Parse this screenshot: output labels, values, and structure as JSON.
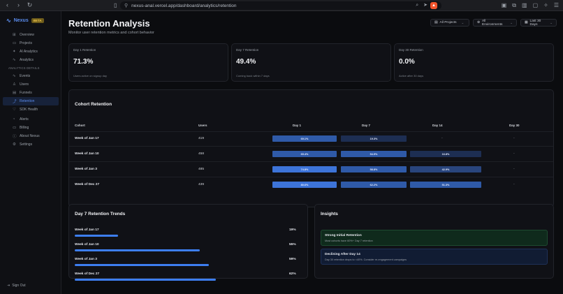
{
  "browser": {
    "url": "nexus-anal.vercel.app/dashboard/analytics/retention"
  },
  "sidebar": {
    "brand": "Nexus",
    "badge": "BETA",
    "items": [
      {
        "label": "Overview",
        "icon": "grid-icon",
        "glyph": "⊞"
      },
      {
        "label": "Projects",
        "icon": "folder-icon",
        "glyph": "▭"
      },
      {
        "label": "AI Analytics",
        "icon": "sparkle-icon",
        "glyph": "✦"
      },
      {
        "label": "Analytics",
        "icon": "pulse-icon",
        "glyph": "∿"
      }
    ],
    "section": "ANALYTICS DETAILS",
    "subitems": [
      {
        "label": "Events",
        "icon": "activity-icon",
        "glyph": "∿"
      },
      {
        "label": "Users",
        "icon": "users-icon",
        "glyph": "♙"
      },
      {
        "label": "Funnels",
        "icon": "funnel-icon",
        "glyph": "▤"
      },
      {
        "label": "Retention",
        "icon": "trend-icon",
        "glyph": "⤴",
        "active": true
      },
      {
        "label": "SDK Health",
        "icon": "heart-icon",
        "glyph": "♡"
      }
    ],
    "bottom": [
      {
        "label": "Alerts",
        "icon": "bell-icon",
        "glyph": "◔"
      },
      {
        "label": "Billing",
        "icon": "card-icon",
        "glyph": "▭"
      },
      {
        "label": "About Nexus",
        "icon": "info-icon",
        "glyph": "ⓘ"
      },
      {
        "label": "Settings",
        "icon": "gear-icon",
        "glyph": "⚙"
      }
    ],
    "signout": "Sign Out"
  },
  "header": {
    "title": "Retention Analysis",
    "subtitle": "Monitor user retention metrics and cohort behavior"
  },
  "filters": {
    "projects": "All Projects",
    "environments": "All Environments",
    "range": "Last 30 Days"
  },
  "stats": [
    {
      "label": "Day 1 Retention",
      "value": "71.3%",
      "desc": "Users active on signup day"
    },
    {
      "label": "Day 7 Retention",
      "value": "49.4%",
      "desc": "Coming back within 7 days"
    },
    {
      "label": "Day 30 Retention",
      "value": "0.0%",
      "desc": "Active after 30 days"
    }
  ],
  "cohort": {
    "title": "Cohort Retention",
    "headers": [
      "Cohort",
      "Users",
      "Day 1",
      "Day 7",
      "Day 14",
      "Day 30"
    ],
    "rows": [
      {
        "cohort": "Week of Jan 17",
        "users": "419",
        "d1": "69.1%",
        "d7": "19.3%",
        "d14": "-",
        "d30": "-",
        "v1": 69.1,
        "v7": 19.3,
        "v14": null
      },
      {
        "cohort": "Week of Jan 10",
        "users": "458",
        "d1": "69.4%",
        "d7": "54.9%",
        "d14": "16.8%",
        "d30": "-",
        "v1": 69.4,
        "v7": 54.9,
        "v14": 16.8
      },
      {
        "cohort": "Week of Jan 3",
        "users": "485",
        "d1": "74.8%",
        "d7": "58.8%",
        "d14": "42.9%",
        "d30": "-",
        "v1": 74.8,
        "v7": 58.8,
        "v14": 42.9
      },
      {
        "cohort": "Week of Dec 27",
        "users": "439",
        "d1": "80.6%",
        "d7": "62.2%",
        "d14": "51.3%",
        "d30": "-",
        "v1": 80.6,
        "v7": 62.2,
        "v14": 51.3
      }
    ]
  },
  "trends": {
    "title": "Day 7 Retention Trends",
    "rows": [
      {
        "label": "Week of Jan 17",
        "pct": "19%",
        "value": 19
      },
      {
        "label": "Week of Jan 10",
        "pct": "55%",
        "value": 55
      },
      {
        "label": "Week of Jan 3",
        "pct": "59%",
        "value": 59
      },
      {
        "label": "Week of Dec 27",
        "pct": "62%",
        "value": 62
      }
    ]
  },
  "insights": {
    "title": "Insights",
    "items": [
      {
        "title": "Strong Initial Retention",
        "desc": "Most cohorts have 60%+ Day 7 retention",
        "kind": "success"
      },
      {
        "title": "Declining After Day 14",
        "desc": "Day 30 retention drops to <40%. Consider re-engagement campaigns",
        "kind": "info"
      }
    ]
  },
  "colors": {
    "accent": "#3d7ef0",
    "success_bg": "#0f2a1c",
    "info_bg": "#111c33"
  }
}
